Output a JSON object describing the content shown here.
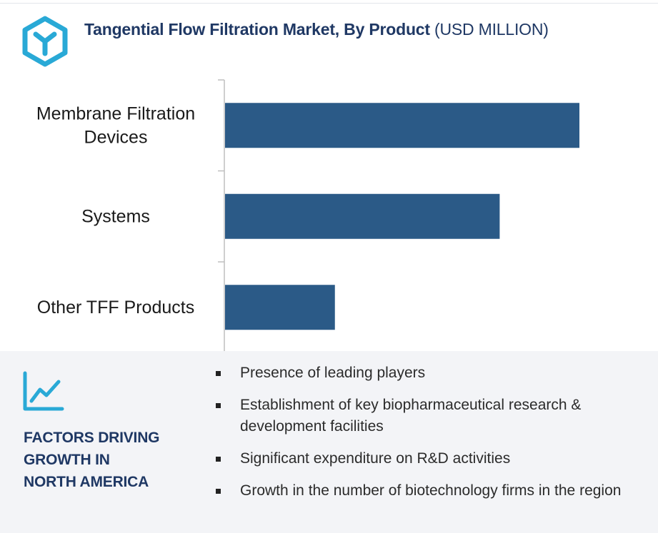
{
  "header": {
    "title": "Tangential Flow Filtration Market, By Product",
    "unit": "(USD MILLION)"
  },
  "colors": {
    "bar": "#2b5a87",
    "title": "#1f3864",
    "accent": "#29a9d6",
    "panel": "#f3f4f7"
  },
  "icons": {
    "logo": "hexagon-y-logo-icon",
    "trend": "line-chart-trend-icon"
  },
  "chart_data": {
    "type": "bar",
    "orientation": "horizontal",
    "categories": [
      [
        "Membrane Filtration",
        "Devices"
      ],
      [
        "Systems"
      ],
      [
        "Other TFF Products"
      ]
    ],
    "values": [
      100,
      77.5,
      31
    ],
    "xlim": [
      0,
      100
    ],
    "value_axis_labels": "none",
    "grid": false,
    "legend": "none"
  },
  "factors": {
    "heading": [
      "FACTORS DRIVING",
      "GROWTH IN",
      "NORTH AMERICA"
    ],
    "items": [
      "Presence of leading players",
      "Establishment of key biopharmaceutical research & development facilities",
      "Significant expenditure on R&D activities",
      "Growth in the number of biotechnology firms in the region"
    ]
  }
}
